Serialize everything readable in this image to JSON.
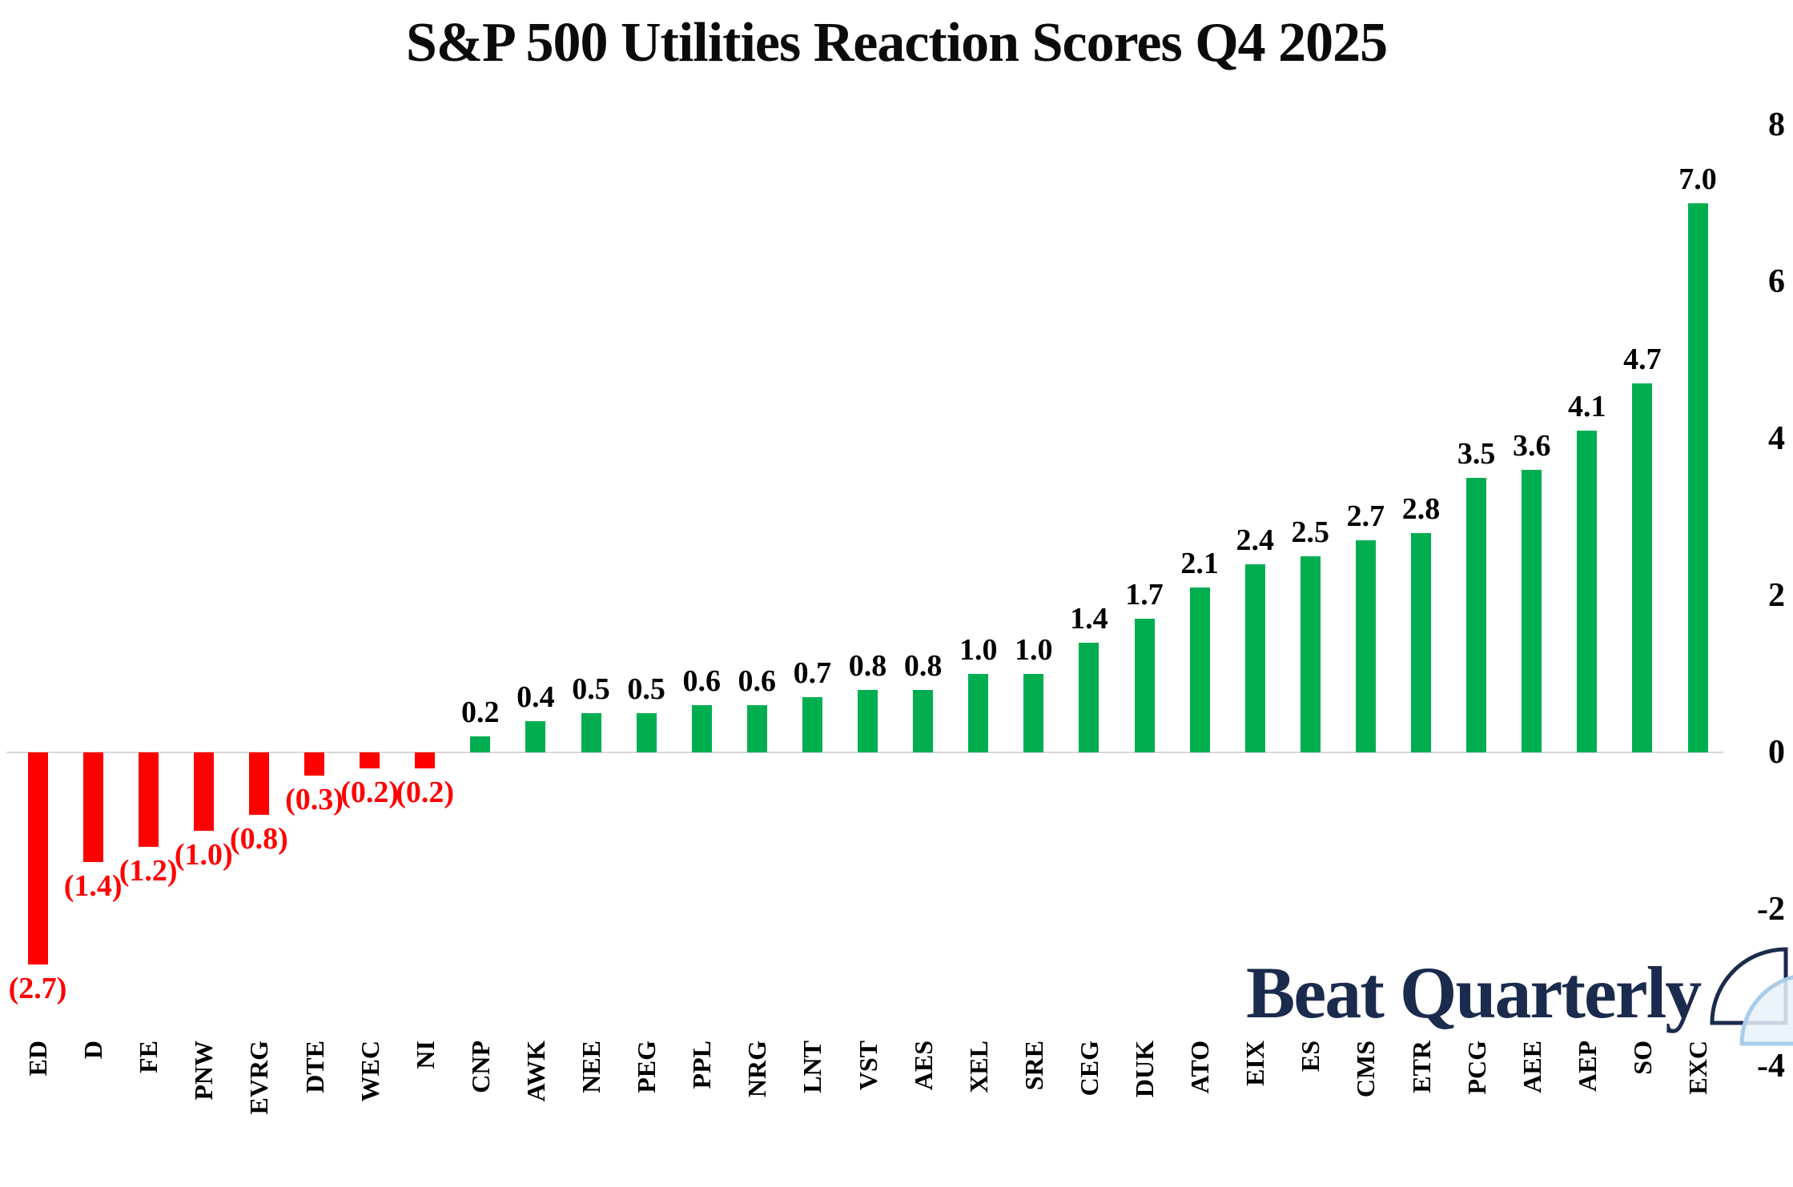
{
  "title": "S&P 500 Utilities Reaction Scores Q4 2025",
  "watermark": {
    "text": "Beat Quarterly",
    "icon": "quarter-circle-logo"
  },
  "colors": {
    "positive_bar": "#00AE50",
    "negative_bar": "#FF0000",
    "positive_label": "#000000",
    "negative_label": "#FF0000",
    "zero_line": "#D8D8D8",
    "logo_navy": "#1B2B4D",
    "logo_light_blue": "#A9CDE9",
    "logo_light_fill": "#E9F2FA"
  },
  "chart_data": {
    "type": "bar",
    "title": "S&P 500 Utilities Reaction Scores Q4 2025",
    "xlabel": "",
    "ylabel": "",
    "categories": [
      "ED",
      "D",
      "FE",
      "PNW",
      "EVRG",
      "DTE",
      "WEC",
      "NI",
      "CNP",
      "AWK",
      "NEE",
      "PEG",
      "PPL",
      "NRG",
      "LNT",
      "VST",
      "AES",
      "XEL",
      "SRE",
      "CEG",
      "DUK",
      "ATO",
      "EIX",
      "ES",
      "CMS",
      "ETR",
      "PCG",
      "AEE",
      "AEP",
      "SO",
      "EXC"
    ],
    "values": [
      -2.7,
      -1.4,
      -1.2,
      -1.0,
      -0.8,
      -0.3,
      -0.2,
      -0.2,
      0.2,
      0.4,
      0.5,
      0.5,
      0.6,
      0.6,
      0.7,
      0.8,
      0.8,
      1.0,
      1.0,
      1.4,
      1.7,
      2.1,
      2.4,
      2.5,
      2.7,
      2.8,
      3.5,
      3.6,
      4.1,
      4.7,
      7.0
    ],
    "value_labels": [
      "(2.7)",
      "(1.4)",
      "(1.2)",
      "(1.0)",
      "(0.8)",
      "(0.3)",
      "(0.2)",
      "(0.2)",
      "0.2",
      "0.4",
      "0.5",
      "0.5",
      "0.6",
      "0.6",
      "0.7",
      "0.8",
      "0.8",
      "1.0",
      "1.0",
      "1.4",
      "1.7",
      "2.1",
      "2.4",
      "2.5",
      "2.7",
      "2.8",
      "3.5",
      "3.6",
      "4.1",
      "4.7",
      "7.0"
    ],
    "negative_format": "parentheses-red",
    "ylim": [
      -4,
      8
    ],
    "y_axis_side": "right",
    "y_ticks": [
      8,
      6,
      4,
      2,
      0,
      -2,
      -4
    ],
    "y_tick_labels": [
      "8",
      "6",
      "4",
      "2",
      "0",
      "-2",
      "-4"
    ],
    "grid": "zero-line-only",
    "legend": "none"
  }
}
